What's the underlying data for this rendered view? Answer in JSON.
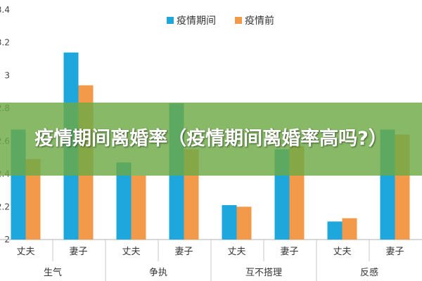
{
  "banner": {
    "title": "疫情期间离婚率（疫情期间离婚率高吗?）"
  },
  "chart_data": {
    "type": "bar",
    "groups": [
      {
        "label": "生气",
        "categories": [
          "丈夫",
          "妻子"
        ]
      },
      {
        "label": "争执",
        "categories": [
          "丈夫",
          "妻子"
        ]
      },
      {
        "label": "互不搭理",
        "categories": [
          "丈夫",
          "妻子"
        ]
      },
      {
        "label": "反感",
        "categories": [
          "丈夫",
          "妻子"
        ]
      }
    ],
    "series": [
      {
        "name": "疫情期间",
        "color": "#1ea7dd",
        "values": [
          2.67,
          3.14,
          2.47,
          2.83,
          2.21,
          2.55,
          2.11,
          2.67
        ]
      },
      {
        "name": "疫情前",
        "color": "#f39a4a",
        "values": [
          2.49,
          2.94,
          2.39,
          2.55,
          2.2,
          2.57,
          2.13,
          2.64
        ]
      }
    ],
    "ylim": [
      2,
      3.4
    ],
    "yticks": [
      "2",
      "2.2",
      "2.4",
      "2.6",
      "2.8",
      "3",
      "3.2",
      "3.4"
    ],
    "legend": "top-center",
    "grid": false
  }
}
